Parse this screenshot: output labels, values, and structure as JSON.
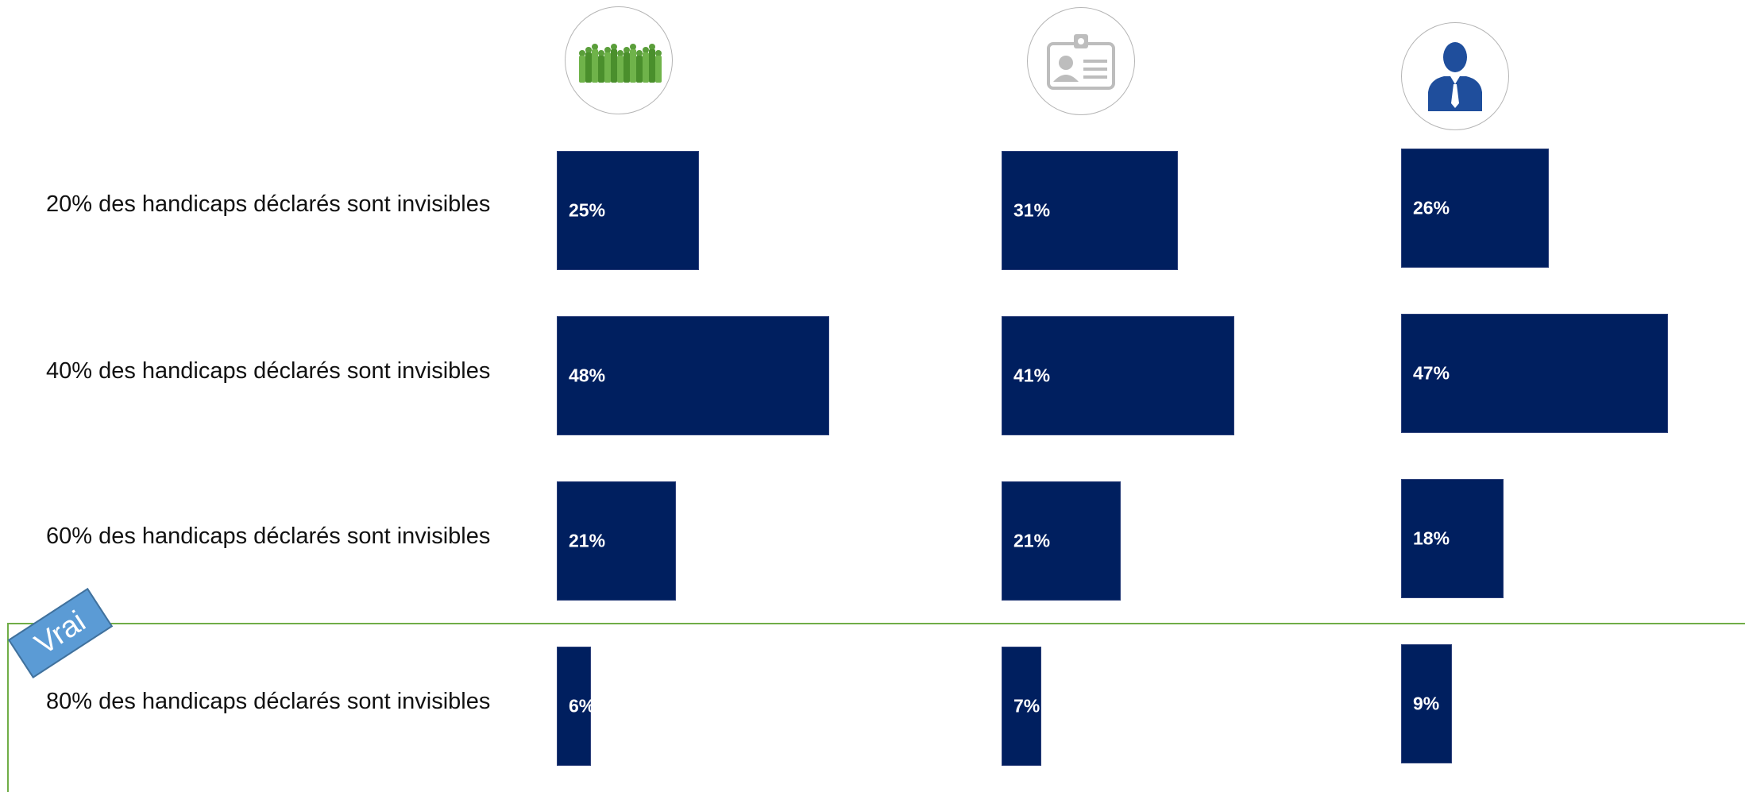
{
  "chart_data": {
    "type": "bar",
    "orientation": "horizontal",
    "categories": [
      "20% des handicaps déclarés sont invisibles",
      "40% des handicaps déclarés sont invisibles",
      "60% des handicaps déclarés sont invisibles",
      "80% des handicaps déclarés sont invisibles"
    ],
    "series": [
      {
        "icon": "crowd-icon",
        "values": [
          25,
          48,
          21,
          6
        ],
        "labels": [
          "25%",
          "48%",
          "21%",
          "6%"
        ]
      },
      {
        "icon": "id-badge-icon",
        "values": [
          31,
          41,
          21,
          7
        ],
        "labels": [
          "31%",
          "41%",
          "21%",
          "7%"
        ]
      },
      {
        "icon": "businessman-icon",
        "values": [
          26,
          47,
          18,
          9
        ],
        "labels": [
          "26%",
          "47%",
          "18%",
          "9%"
        ]
      }
    ],
    "bar_color": "#001f5f",
    "highlight": {
      "category_index": 3,
      "label": "Vrai",
      "color": "#70ad47",
      "badge_color": "#5b9bd5"
    }
  }
}
